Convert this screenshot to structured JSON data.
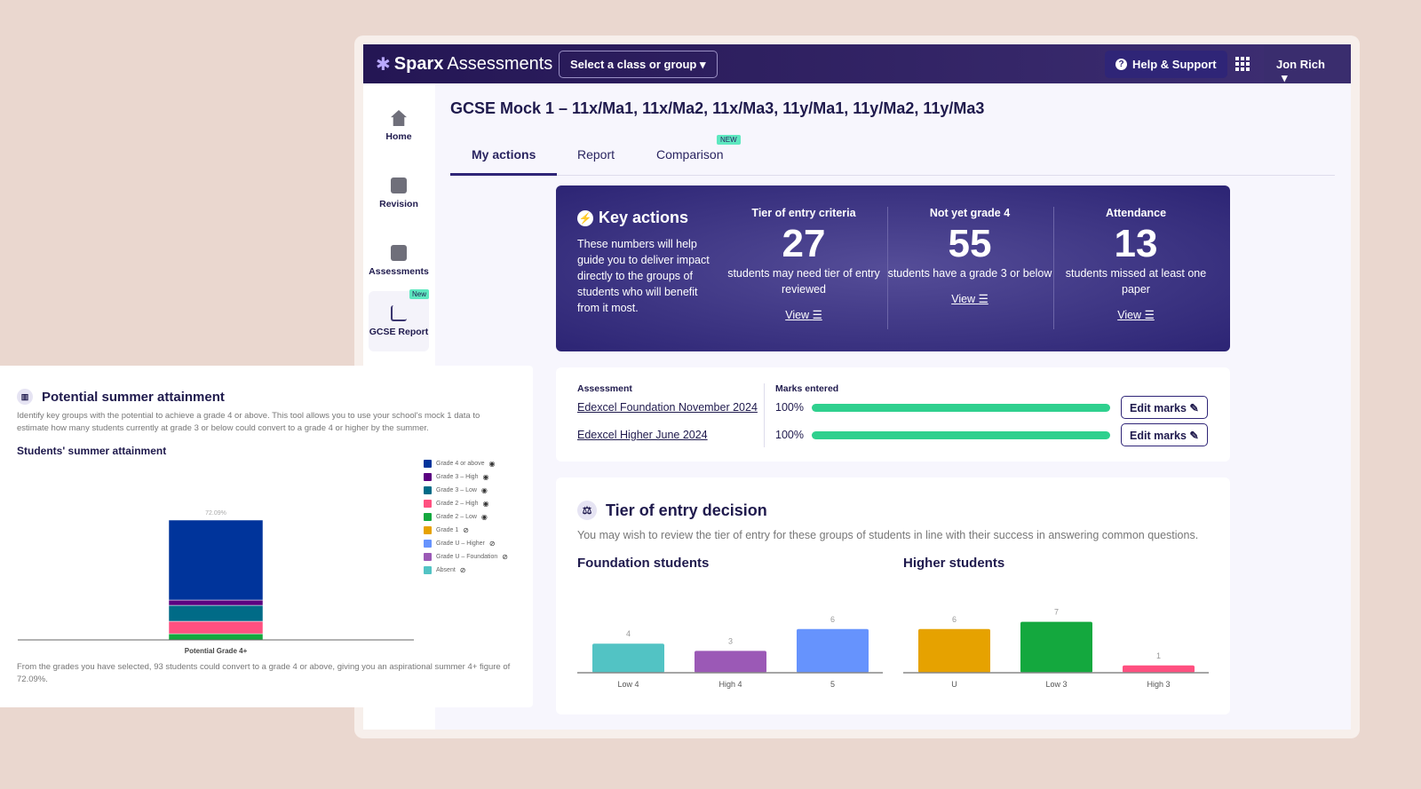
{
  "nav": {
    "logo_bold": "Sparx",
    "logo_light": "Assessments",
    "class_select": "Select a class or group",
    "help": "Help & Support",
    "user": "Jon Rich"
  },
  "sidebar": {
    "items": [
      {
        "label": "Home",
        "icon": "home-icon"
      },
      {
        "label": "Revision",
        "icon": "clipboard-icon"
      },
      {
        "label": "Assessments",
        "icon": "document-icon"
      },
      {
        "label": "GCSE Report",
        "icon": "bar-chart-icon",
        "badge": "New"
      }
    ]
  },
  "page_title": "GCSE Mock 1 – 11x/Ma1, 11x/Ma2, 11x/Ma3, 11y/Ma1, 11y/Ma2, 11y/Ma3",
  "tabs": [
    {
      "label": "My actions",
      "active": true
    },
    {
      "label": "Report"
    },
    {
      "label": "Comparison",
      "badge": "NEW"
    }
  ],
  "key_actions": {
    "title": "Key actions",
    "description": "These numbers will help guide you to deliver impact directly to the groups of students who will benefit from it most.",
    "stats": [
      {
        "heading": "Tier of entry criteria",
        "value": "27",
        "caption": "students may need tier of entry reviewed",
        "link": "View"
      },
      {
        "heading": "Not yet grade 4",
        "value": "55",
        "caption": "students have a grade 3 or below",
        "link": "View"
      },
      {
        "heading": "Attendance",
        "value": "13",
        "caption": "students missed at least one paper",
        "link": "View"
      }
    ]
  },
  "assessments": {
    "col_assessment": "Assessment",
    "col_marks": "Marks entered",
    "rows": [
      {
        "name": "Edexcel Foundation November 2024",
        "marks": "100%",
        "progress": 100,
        "button": "Edit marks"
      },
      {
        "name": "Edexcel Higher June 2024",
        "marks": "100%",
        "progress": 100,
        "button": "Edit marks"
      }
    ]
  },
  "tier": {
    "title": "Tier of entry decision",
    "description": "You may wish to review the tier of entry for these groups of students in line with their success in answering common questions."
  },
  "chart_data": [
    {
      "type": "bar",
      "title": "Foundation students",
      "categories": [
        "Low 4",
        "High 4",
        "5"
      ],
      "values": [
        4,
        3,
        6
      ],
      "colors": [
        "#52c3c4",
        "#9b59b6",
        "#6693fd"
      ]
    },
    {
      "type": "bar",
      "title": "Higher students",
      "categories": [
        "U",
        "Low 3",
        "High 3"
      ],
      "values": [
        6,
        7,
        1
      ],
      "colors": [
        "#e6a200",
        "#14a83e",
        "#ff5080"
      ]
    },
    {
      "type": "bar",
      "stacked": true,
      "title": "Students' summer attainment",
      "categories": [
        "Potential Grade 4+"
      ],
      "total_label": "72.09%",
      "series": [
        {
          "name": "Grade 4 or above",
          "value": 48.1,
          "color": "#00349b",
          "visible": true
        },
        {
          "name": "Grade 3 – High",
          "value": 3.2,
          "color": "#5b0080",
          "visible": true
        },
        {
          "name": "Grade 3 – Low",
          "value": 9.6,
          "color": "#006b87",
          "visible": true
        },
        {
          "name": "Grade 2 – High",
          "value": 7.5,
          "color": "#ff5080",
          "visible": true
        },
        {
          "name": "Grade 2 – Low",
          "value": 3.7,
          "color": "#14a83e",
          "visible": true
        },
        {
          "name": "Grade 1",
          "color": "#e6a200",
          "visible": false
        },
        {
          "name": "Grade U – Higher",
          "color": "#6693fd",
          "visible": false
        },
        {
          "name": "Grade U – Foundation",
          "color": "#9b59b6",
          "visible": false
        },
        {
          "name": "Absent",
          "color": "#52c3c4",
          "visible": false
        }
      ]
    }
  ],
  "attainment": {
    "title": "Potential summer attainment",
    "description": "Identify key groups with the potential to achieve a grade 4 or above. This tool allows you to use your school's mock 1 data to estimate how many students currently at grade 3 or below could convert to a grade 4 or higher by the summer.",
    "chart_title": "Students' summer attainment",
    "footer": "From the grades you have selected, 93 students could convert to a grade 4 or above, giving you an aspirational summer 4+ figure of 72.09%."
  }
}
